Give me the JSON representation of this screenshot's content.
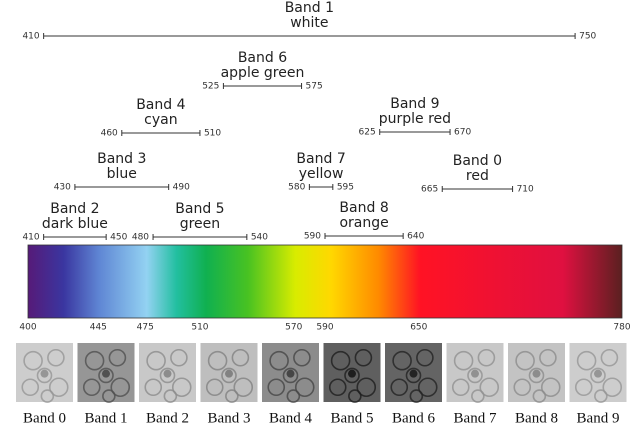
{
  "bands": [
    {
      "name": "Band 1",
      "color": "white",
      "start": 410,
      "end": 750
    },
    {
      "name": "Band 6",
      "color": "apple green",
      "start": 525,
      "end": 575
    },
    {
      "name": "Band 4",
      "color": "cyan",
      "start": 460,
      "end": 510
    },
    {
      "name": "Band 9",
      "color": "purple red",
      "start": 625,
      "end": 670
    },
    {
      "name": "Band 3",
      "color": "blue",
      "start": 430,
      "end": 490
    },
    {
      "name": "Band 7",
      "color": "yellow",
      "start": 580,
      "end": 595
    },
    {
      "name": "Band 0",
      "color": "red",
      "start": 665,
      "end": 710
    },
    {
      "name": "Band 2",
      "color": "dark blue",
      "start": 410,
      "end": 450
    },
    {
      "name": "Band 5",
      "color": "green",
      "start": 480,
      "end": 540
    },
    {
      "name": "Band 8",
      "color": "orange",
      "start": 590,
      "end": 640
    }
  ],
  "spectrum": {
    "ticks": [
      400,
      445,
      475,
      510,
      570,
      590,
      650,
      780
    ]
  },
  "thumbnails": [
    "Band 0",
    "Band 1",
    "Band 2",
    "Band 3",
    "Band 4",
    "Band 5",
    "Band 6",
    "Band 7",
    "Band 8",
    "Band 9"
  ]
}
